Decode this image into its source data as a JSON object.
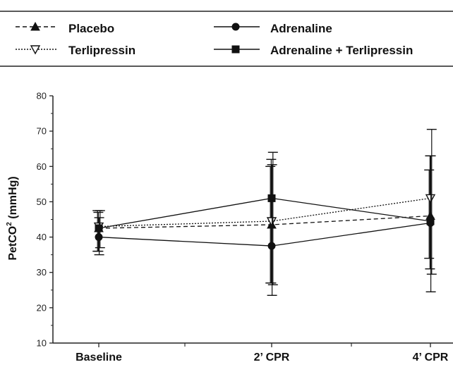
{
  "chart_data": {
    "type": "line",
    "categories": [
      "Baseline",
      "2’ CPR",
      "4’ CPR"
    ],
    "ylabel_main": "PetCO",
    "ylabel_sup": "2",
    "ylabel_unit": " (mmHg)",
    "ylim": [
      10,
      80
    ],
    "yticks": [
      10,
      20,
      30,
      40,
      50,
      60,
      70,
      80
    ],
    "grid": false,
    "legend_position": "top",
    "series": [
      {
        "name": "Placebo",
        "style": "dashed",
        "marker": "triangle-filled",
        "values": [
          42.5,
          43.5,
          46
        ],
        "err_low": [
          36,
          27,
          34
        ],
        "err_high": [
          47.5,
          60,
          59
        ]
      },
      {
        "name": "Terlipressin",
        "style": "dotted",
        "marker": "triangle-open",
        "values": [
          43,
          44.5,
          51
        ],
        "err_low": [
          36,
          27,
          31
        ],
        "err_high": [
          47,
          62,
          63
        ]
      },
      {
        "name": "Adrenaline",
        "style": "solid",
        "marker": "circle-filled",
        "values": [
          40,
          37.5,
          44
        ],
        "err_low": [
          35,
          23.5,
          24.5
        ],
        "err_high": [
          45.5,
          60.5,
          63
        ]
      },
      {
        "name": "Adrenaline  + Terlipressin",
        "style": "solid",
        "marker": "square-filled",
        "values": [
          42.5,
          51,
          44.5
        ],
        "err_low": [
          37,
          26.5,
          29.5
        ],
        "err_high": [
          47.5,
          64,
          70.5
        ]
      }
    ]
  }
}
